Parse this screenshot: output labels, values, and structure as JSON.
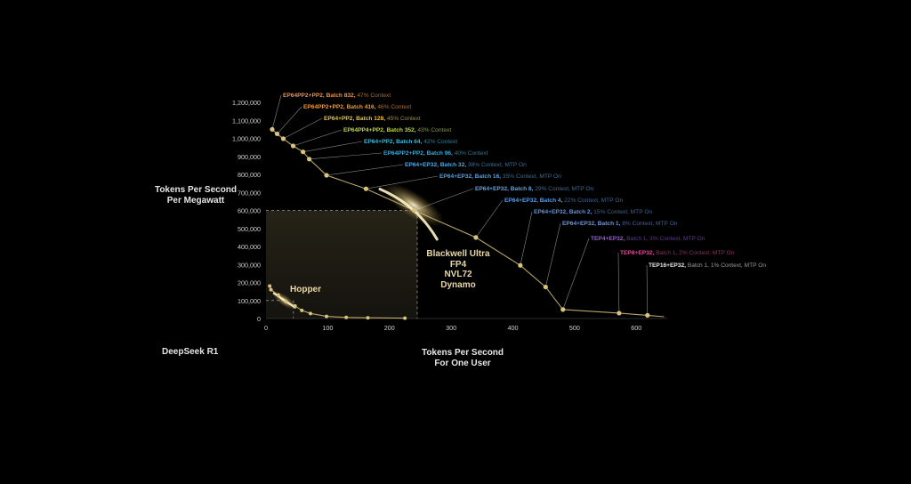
{
  "colors": {
    "background": "#000000",
    "curve": "#d8c27a",
    "point": "#d9c47e",
    "glow": "#fff4c8",
    "axis_text": "#d0d0d0",
    "dashed": "#9a9a9a",
    "leader": "#8a8a8a",
    "muted": "#777777"
  },
  "labels": {
    "y_axis_line1": "Tokens Per Second",
    "y_axis_line2": "Per Megawatt",
    "x_axis_line1": "Tokens Per Second",
    "x_axis_line2": "For One User",
    "model": "DeepSeek R1",
    "blackwell": [
      "Blackwell Ultra",
      "FP4",
      "NVL72",
      "Dynamo"
    ],
    "hopper": "Hopper"
  },
  "chart_data": {
    "type": "line",
    "xlim": [
      0,
      650
    ],
    "ylim": [
      0,
      1200000
    ],
    "x_ticks": [
      "0",
      "100",
      "200",
      "300",
      "400",
      "500",
      "600"
    ],
    "y_ticks": [
      "0",
      "100,000",
      "200,000",
      "300,000",
      "400,000",
      "500,000",
      "600,000",
      "700,000",
      "800,000",
      "900,000",
      "1,000,000",
      "1,100,000",
      "1,200,000"
    ],
    "blackwell_points": [
      {
        "x": 10,
        "y": 1050000
      },
      {
        "x": 18,
        "y": 1025000
      },
      {
        "x": 28,
        "y": 998000
      },
      {
        "x": 44,
        "y": 958000
      },
      {
        "x": 60,
        "y": 925000
      },
      {
        "x": 70,
        "y": 885000
      },
      {
        "x": 98,
        "y": 795000
      },
      {
        "x": 162,
        "y": 720000
      },
      {
        "x": 240,
        "y": 600000
      },
      {
        "x": 340,
        "y": 450000
      },
      {
        "x": 412,
        "y": 295000
      },
      {
        "x": 453,
        "y": 175000
      },
      {
        "x": 481,
        "y": 50000
      },
      {
        "x": 572,
        "y": 30000
      },
      {
        "x": 618,
        "y": 18000
      },
      {
        "x": 645,
        "y": 10000
      }
    ],
    "hopper_points": [
      {
        "x": 6,
        "y": 180000
      },
      {
        "x": 8,
        "y": 160000
      },
      {
        "x": 20,
        "y": 130000
      },
      {
        "x": 32,
        "y": 95000
      },
      {
        "x": 47,
        "y": 70000
      },
      {
        "x": 58,
        "y": 45000
      },
      {
        "x": 72,
        "y": 28000
      },
      {
        "x": 98,
        "y": 12000
      },
      {
        "x": 130,
        "y": 6000
      },
      {
        "x": 165,
        "y": 4000
      },
      {
        "x": 225,
        "y": 2000
      }
    ],
    "highlight": {
      "x": 245,
      "y": 600000
    },
    "hopper_highlight": {
      "x": 30,
      "y": 100000
    },
    "annotations": [
      {
        "bold": "EP64PP2+PP2, Batch 832,",
        "rest": " 47% Context",
        "bold_color": "#e8914a",
        "rest_color": "#a9683a",
        "point": 0
      },
      {
        "bold": "EP64PP2+PP2, Batch 416,",
        "rest": " 46% Context",
        "bold_color": "#e89b3c",
        "rest_color": "#a8713a",
        "point": 1
      },
      {
        "bold": "EP64+PP2, Batch 128,",
        "rest": " 45% Context",
        "bold_color": "#e8c23a",
        "rest_color": "#a38c40",
        "point": 2
      },
      {
        "bold": "EP64PP4+PP2, Batch 352,",
        "rest": " 43% Context",
        "bold_color": "#bfd83a",
        "rest_color": "#8a9a40",
        "point": 3
      },
      {
        "bold": "EP64+PP2, Batch 64,",
        "rest": " 42% Context",
        "bold_color": "#3ab8d8",
        "rest_color": "#347f92",
        "point": 4
      },
      {
        "bold": "EP64PP2+PP2, Batch 96,",
        "rest": " 40% Context",
        "bold_color": "#3aa8d8",
        "rest_color": "#34748f",
        "point": 5
      },
      {
        "bold": "EP64+EP32, Batch 32,",
        "rest": " 38% Context, MTP On",
        "bold_color": "#4fa8e0",
        "rest_color": "#3d6f92",
        "point": 6
      },
      {
        "bold": "EP64+EP32, Batch 16,",
        "rest": " 35% Context, MTP On",
        "bold_color": "#4fa0e0",
        "rest_color": "#3d6a92",
        "point": 7
      },
      {
        "bold": "EP64+EP32, Batch 8,",
        "rest": " 29% Context, MTP On",
        "bold_color": "#5aa4e4",
        "rest_color": "#3f6c94",
        "point": 8
      },
      {
        "bold": "EP64+EP32, Batch 4,",
        "rest": " 22% Context, MTP On",
        "bold_color": "#5a9ce4",
        "rest_color": "#3f6694",
        "point": 9
      },
      {
        "bold": "EP64+EP32, Batch 2,",
        "rest": " 15% Context, MTP On",
        "bold_color": "#5a94e4",
        "rest_color": "#3f6294",
        "point": 10
      },
      {
        "bold": "EP64+EP32, Batch 1,",
        "rest": " 8% Context, MTP On",
        "bold_color": "#6a94e8",
        "rest_color": "#436096",
        "point": 11
      },
      {
        "bold": "TEP4+EP32,",
        "rest": " Batch 1, 3% Context, MTP On",
        "bold_color": "#9a58e0",
        "rest_color": "#5e3a8a",
        "point": 12
      },
      {
        "bold": "TEP8+EP32,",
        "rest": " Batch 1, 2% Context, MTP On",
        "bold_color": "#e0489a",
        "rest_color": "#8a2f60",
        "point": 13
      },
      {
        "bold": "TEP16+EP32,",
        "rest": " Batch 1, 1% Context, MTP On",
        "bold_color": "#e8e8e8",
        "rest_color": "#9a9a9a",
        "point": 14
      }
    ]
  }
}
